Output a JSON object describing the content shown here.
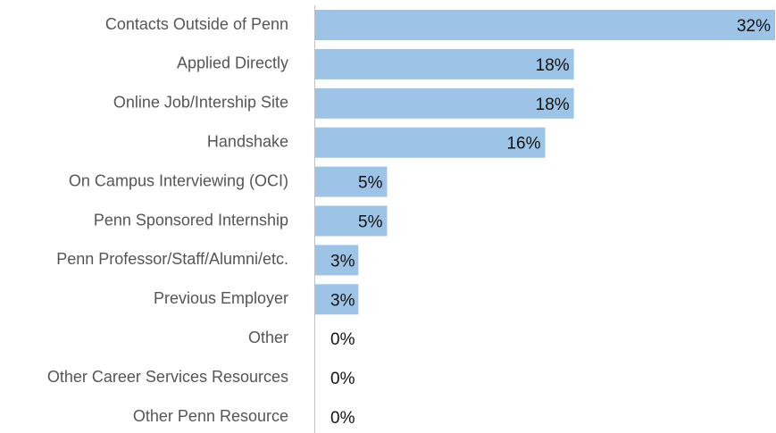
{
  "chart_data": {
    "type": "hbar",
    "categories": [
      "Contacts Outside of Penn",
      "Applied Directly",
      "Online Job/Intership Site",
      "Handshake",
      "On Campus Interviewing (OCI)",
      "Penn Sponsored Internship",
      "Penn Professor/Staff/Alumni/etc.",
      "Previous Employer",
      "Other",
      "Other Career Services Resources",
      "Other Penn Resource"
    ],
    "values": [
      32,
      18,
      18,
      16,
      5,
      5,
      3,
      3,
      0,
      0,
      0
    ],
    "value_labels": [
      "32%",
      "18%",
      "18%",
      "16%",
      "5%",
      "5%",
      "3%",
      "3%",
      "0%",
      "0%",
      "0%"
    ],
    "color": "#9dc3e6",
    "xlim": [
      0,
      32
    ]
  }
}
